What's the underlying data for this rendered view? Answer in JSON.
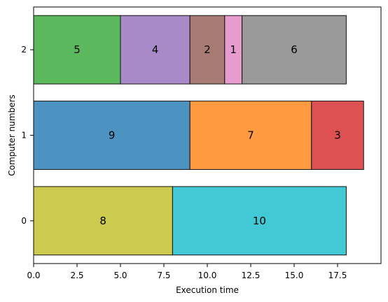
{
  "chart_data": {
    "type": "bar",
    "orientation": "horizontal",
    "stacked": true,
    "title": "",
    "xlabel": "Execution time",
    "ylabel": "Computer numbers",
    "xlim": [
      0,
      20
    ],
    "ylim": [
      -0.5,
      2.5
    ],
    "grid": false,
    "x_ticks": [
      0,
      2.5,
      5,
      7.5,
      10,
      12.5,
      15,
      17.5
    ],
    "x_tick_labels": [
      "0.0",
      "2.5",
      "5.0",
      "7.5",
      "10.0",
      "12.5",
      "15.0",
      "17.5"
    ],
    "y_ticks": [
      0,
      1,
      2
    ],
    "y_tick_labels": [
      "0",
      "1",
      "2"
    ],
    "rows": [
      {
        "y": 2,
        "segments": [
          {
            "label": "5",
            "start": 0,
            "duration": 5,
            "color": "#5cb85c"
          },
          {
            "label": "4",
            "start": 5,
            "duration": 4,
            "color": "#a98ac9"
          },
          {
            "label": "2",
            "start": 9,
            "duration": 2,
            "color": "#a77a72"
          },
          {
            "label": "1",
            "start": 11,
            "duration": 1,
            "color": "#e89bce"
          },
          {
            "label": "6",
            "start": 12,
            "duration": 6,
            "color": "#9a9a9a"
          }
        ]
      },
      {
        "y": 1,
        "segments": [
          {
            "label": "9",
            "start": 0,
            "duration": 9,
            "color": "#4c93c2"
          },
          {
            "label": "7",
            "start": 9,
            "duration": 7,
            "color": "#ff9a40"
          },
          {
            "label": "3",
            "start": 16,
            "duration": 3,
            "color": "#dd5152"
          }
        ]
      },
      {
        "y": 0,
        "segments": [
          {
            "label": "8",
            "start": 0,
            "duration": 8,
            "color": "#cccb50"
          },
          {
            "label": "10",
            "start": 8,
            "duration": 10,
            "color": "#43c8d6"
          }
        ]
      }
    ]
  }
}
